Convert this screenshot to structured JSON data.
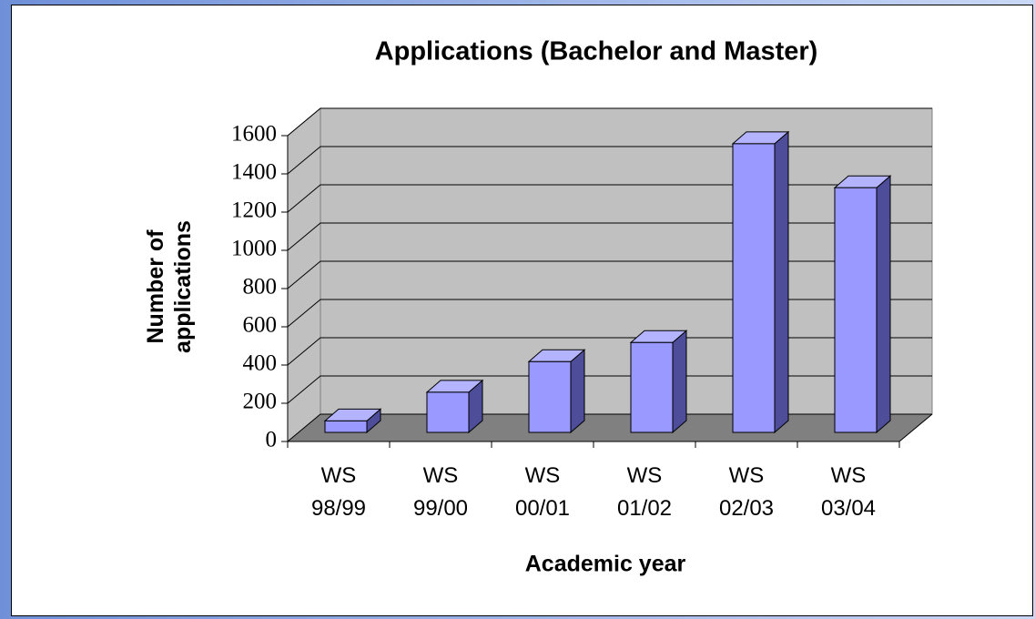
{
  "chart_data": {
    "type": "bar3d",
    "title": "Applications (Bachelor and Master)",
    "x_label": "Academic year",
    "y_label": "Number of applications",
    "categories": [
      "WS 98/99",
      "WS 99/00",
      "WS 00/01",
      "WS 01/02",
      "WS 02/03",
      "WS 03/04"
    ],
    "values": [
      60,
      210,
      370,
      470,
      1510,
      1280
    ],
    "color": "#9999ff",
    "side_color": "#4d4d99",
    "top_color": "#b3b3ff",
    "wall_color": "#c0c0c0",
    "floor_color": "#808080",
    "ylim": [
      0,
      1600
    ],
    "yticks": [
      0,
      200,
      400,
      600,
      800,
      1000,
      1200,
      1400,
      1600
    ],
    "grid": true
  }
}
